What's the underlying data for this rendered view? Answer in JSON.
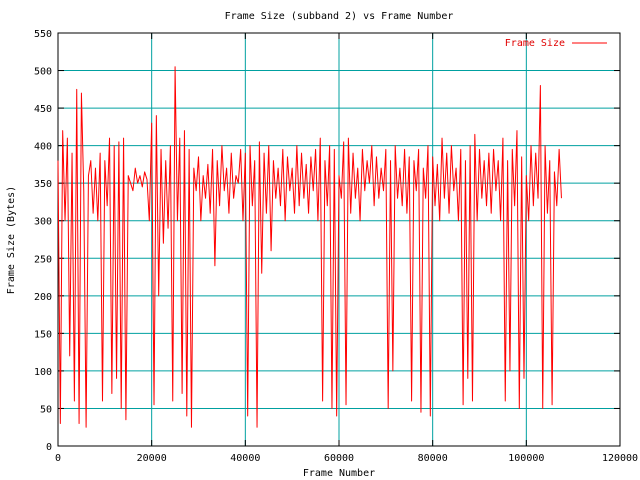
{
  "chart_data": {
    "type": "line",
    "title": "Frame Size (subband 2) vs Frame Number",
    "xlabel": "Frame Number",
    "ylabel": "Frame Size (Bytes)",
    "xlim": [
      0,
      120000
    ],
    "ylim": [
      0,
      550
    ],
    "x_ticks": [
      0,
      20000,
      40000,
      60000,
      80000,
      100000,
      120000
    ],
    "y_ticks": [
      0,
      50,
      100,
      150,
      200,
      250,
      300,
      350,
      400,
      450,
      500,
      550
    ],
    "x_tick_labels": [
      "0",
      "20000",
      "40000",
      "60000",
      "80000",
      "100000",
      "120000"
    ],
    "y_tick_labels": [
      "0",
      "50",
      "100",
      "150",
      "200",
      "250",
      "300",
      "350",
      "400",
      "450",
      "500",
      "550"
    ],
    "grid": true,
    "legend_position": "top-right",
    "series": [
      {
        "name": "Frame Size",
        "color": "#ff0000",
        "x": [
          0,
          500,
          1000,
          1500,
          2000,
          2500,
          3000,
          3500,
          4000,
          4500,
          5000,
          5500,
          6000,
          6500,
          7000,
          7500,
          8000,
          8500,
          9000,
          9500,
          10000,
          10500,
          11000,
          11500,
          12000,
          12500,
          13000,
          13500,
          14000,
          14500,
          15000,
          15500,
          16000,
          16500,
          17000,
          17500,
          18000,
          18500,
          19000,
          19500,
          20000,
          20500,
          21000,
          21500,
          22000,
          22500,
          23000,
          23500,
          24000,
          24500,
          25000,
          25500,
          26000,
          26500,
          27000,
          27500,
          28000,
          28500,
          29000,
          29500,
          30000,
          30500,
          31000,
          31500,
          32000,
          32500,
          33000,
          33500,
          34000,
          34500,
          35000,
          35500,
          36000,
          36500,
          37000,
          37500,
          38000,
          38500,
          39000,
          39500,
          40000,
          40500,
          41000,
          41500,
          42000,
          42500,
          43000,
          43500,
          44000,
          44500,
          45000,
          45500,
          46000,
          46500,
          47000,
          47500,
          48000,
          48500,
          49000,
          49500,
          50000,
          50500,
          51000,
          51500,
          52000,
          52500,
          53000,
          53500,
          54000,
          54500,
          55000,
          55500,
          56000,
          56500,
          57000,
          57500,
          58000,
          58500,
          59000,
          59500,
          60000,
          60500,
          61000,
          61500,
          62000,
          62500,
          63000,
          63500,
          64000,
          64500,
          65000,
          65500,
          66000,
          66500,
          67000,
          67500,
          68000,
          68500,
          69000,
          69500,
          70000,
          70500,
          71000,
          71500,
          72000,
          72500,
          73000,
          73500,
          74000,
          74500,
          75000,
          75500,
          76000,
          76500,
          77000,
          77500,
          78000,
          78500,
          79000,
          79500,
          80000,
          80500,
          81000,
          81500,
          82000,
          82500,
          83000,
          83500,
          84000,
          84500,
          85000,
          85500,
          86000,
          86500,
          87000,
          87500,
          88000,
          88500,
          89000,
          89500,
          90000,
          90500,
          91000,
          91500,
          92000,
          92500,
          93000,
          93500,
          94000,
          94500,
          95000,
          95500,
          96000,
          96500,
          97000,
          97500,
          98000,
          98500,
          99000,
          99500,
          100000,
          100500,
          101000,
          101500,
          102000,
          102500,
          103000,
          103500,
          104000,
          104500,
          105000,
          105500,
          106000,
          106500,
          107000,
          107500
        ],
        "values": [
          380,
          30,
          420,
          300,
          410,
          120,
          390,
          60,
          475,
          30,
          470,
          340,
          25,
          360,
          380,
          310,
          370,
          300,
          390,
          60,
          380,
          320,
          410,
          70,
          400,
          90,
          405,
          50,
          410,
          35,
          360,
          350,
          340,
          370,
          350,
          360,
          345,
          365,
          355,
          300,
          430,
          55,
          440,
          200,
          395,
          270,
          380,
          290,
          400,
          60,
          505,
          300,
          410,
          70,
          420,
          40,
          395,
          25,
          370,
          340,
          385,
          300,
          360,
          330,
          375,
          310,
          395,
          240,
          380,
          320,
          400,
          340,
          370,
          310,
          390,
          330,
          360,
          350,
          395,
          300,
          390,
          40,
          400,
          320,
          380,
          25,
          405,
          230,
          390,
          310,
          400,
          260,
          380,
          330,
          370,
          320,
          395,
          300,
          385,
          340,
          370,
          310,
          400,
          320,
          390,
          330,
          375,
          310,
          385,
          340,
          395,
          300,
          410,
          60,
          380,
          320,
          400,
          50,
          395,
          40,
          360,
          330,
          405,
          55,
          410,
          310,
          390,
          330,
          370,
          300,
          395,
          340,
          380,
          350,
          400,
          320,
          385,
          330,
          370,
          340,
          395,
          50,
          380,
          100,
          400,
          330,
          370,
          320,
          395,
          310,
          385,
          60,
          380,
          340,
          395,
          45,
          370,
          330,
          400,
          40,
          385,
          320,
          375,
          300,
          410,
          330,
          390,
          310,
          400,
          340,
          370,
          300,
          395,
          55,
          380,
          90,
          400,
          60,
          415,
          300,
          395,
          330,
          380,
          320,
          390,
          310,
          395,
          340,
          380,
          300,
          410,
          60,
          380,
          100,
          395,
          320,
          420,
          50,
          385,
          90,
          360,
          300,
          400,
          320,
          390,
          330,
          480,
          50,
          400,
          310,
          380,
          55,
          365,
          320,
          395,
          330
        ]
      }
    ]
  }
}
